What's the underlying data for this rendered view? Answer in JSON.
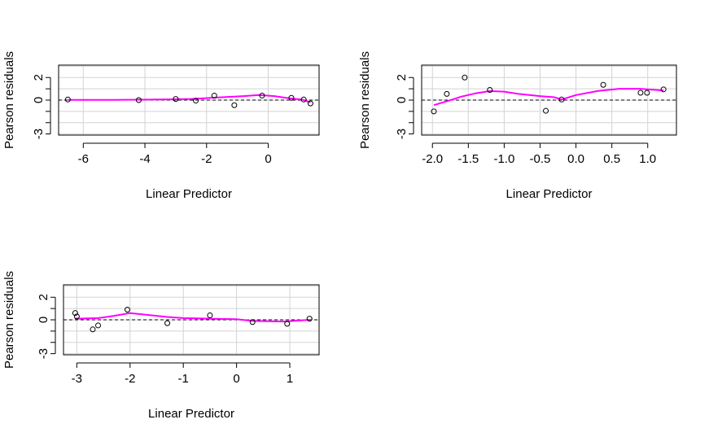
{
  "chart_data": [
    {
      "type": "scatter",
      "xlabel": "Linear Predictor",
      "ylabel": "Pearson residuals",
      "xlim": [
        -6.8,
        1.65
      ],
      "ylim": [
        -3.1,
        3.1
      ],
      "xticks": [
        -6,
        -4,
        -2,
        0
      ],
      "yticks": [
        -3,
        0,
        2
      ],
      "grid": true,
      "reference_line_y": 0,
      "points": [
        {
          "x": -6.5,
          "y": 0.05
        },
        {
          "x": -4.2,
          "y": 0.0
        },
        {
          "x": -3.0,
          "y": 0.1
        },
        {
          "x": -2.35,
          "y": -0.05
        },
        {
          "x": -1.75,
          "y": 0.4
        },
        {
          "x": -1.1,
          "y": -0.45
        },
        {
          "x": -0.2,
          "y": 0.4
        },
        {
          "x": 0.75,
          "y": 0.2
        },
        {
          "x": 1.15,
          "y": 0.05
        },
        {
          "x": 1.37,
          "y": -0.3
        }
      ],
      "smooth": [
        {
          "x": -6.5,
          "y": 0.02
        },
        {
          "x": -5.0,
          "y": 0.02
        },
        {
          "x": -3.5,
          "y": 0.05
        },
        {
          "x": -2.5,
          "y": 0.1
        },
        {
          "x": -1.5,
          "y": 0.25
        },
        {
          "x": -0.8,
          "y": 0.35
        },
        {
          "x": -0.3,
          "y": 0.45
        },
        {
          "x": 0.2,
          "y": 0.35
        },
        {
          "x": 0.7,
          "y": 0.15
        },
        {
          "x": 1.1,
          "y": 0.05
        },
        {
          "x": 1.37,
          "y": -0.2
        }
      ],
      "smooth_color": "#ff00ff"
    },
    {
      "type": "scatter",
      "xlabel": "Linear Predictor",
      "ylabel": "Pearson residuals",
      "xlim": [
        -2.15,
        1.4
      ],
      "ylim": [
        -3.1,
        3.1
      ],
      "xticks": [
        -2.0,
        -1.5,
        -1.0,
        -0.5,
        0.0,
        0.5,
        1.0
      ],
      "xtick_labels": [
        "-2.0",
        "-1.5",
        "-1.0",
        "-0.5",
        "0.0",
        "0.5",
        "1.0"
      ],
      "yticks": [
        -3,
        0,
        2
      ],
      "grid": true,
      "reference_line_y": 0,
      "points": [
        {
          "x": -1.98,
          "y": -1.0
        },
        {
          "x": -1.8,
          "y": 0.55
        },
        {
          "x": -1.55,
          "y": 2.0
        },
        {
          "x": -1.2,
          "y": 0.9
        },
        {
          "x": -0.42,
          "y": -0.95
        },
        {
          "x": -0.2,
          "y": 0.05
        },
        {
          "x": 0.38,
          "y": 1.35
        },
        {
          "x": 0.9,
          "y": 0.65
        },
        {
          "x": 0.99,
          "y": 0.65
        },
        {
          "x": 1.22,
          "y": 0.95
        }
      ],
      "smooth": [
        {
          "x": -1.98,
          "y": -0.45
        },
        {
          "x": -1.8,
          "y": -0.1
        },
        {
          "x": -1.6,
          "y": 0.3
        },
        {
          "x": -1.4,
          "y": 0.6
        },
        {
          "x": -1.2,
          "y": 0.8
        },
        {
          "x": -1.0,
          "y": 0.75
        },
        {
          "x": -0.8,
          "y": 0.55
        },
        {
          "x": -0.5,
          "y": 0.35
        },
        {
          "x": -0.3,
          "y": 0.25
        },
        {
          "x": -0.2,
          "y": 0.05
        },
        {
          "x": 0.0,
          "y": 0.45
        },
        {
          "x": 0.3,
          "y": 0.8
        },
        {
          "x": 0.6,
          "y": 1.0
        },
        {
          "x": 0.9,
          "y": 1.0
        },
        {
          "x": 1.22,
          "y": 0.85
        }
      ],
      "smooth_color": "#ff00ff"
    },
    {
      "type": "scatter",
      "xlabel": "Linear Predictor",
      "ylabel": "Pearson residuals",
      "xlim": [
        -3.25,
        1.55
      ],
      "ylim": [
        -3.1,
        3.1
      ],
      "xticks": [
        -3,
        -2,
        -1,
        0,
        1
      ],
      "yticks": [
        -3,
        0,
        2
      ],
      "grid": true,
      "reference_line_y": 0,
      "points": [
        {
          "x": -3.03,
          "y": 0.6
        },
        {
          "x": -3.0,
          "y": 0.3
        },
        {
          "x": -2.7,
          "y": -0.85
        },
        {
          "x": -2.6,
          "y": -0.5
        },
        {
          "x": -2.05,
          "y": 0.9
        },
        {
          "x": -1.3,
          "y": -0.3
        },
        {
          "x": -0.5,
          "y": 0.4
        },
        {
          "x": 0.3,
          "y": -0.2
        },
        {
          "x": 0.95,
          "y": -0.35
        },
        {
          "x": 1.37,
          "y": 0.1
        }
      ],
      "smooth": [
        {
          "x": -3.03,
          "y": 0.1
        },
        {
          "x": -2.6,
          "y": 0.15
        },
        {
          "x": -2.3,
          "y": 0.35
        },
        {
          "x": -2.0,
          "y": 0.6
        },
        {
          "x": -1.7,
          "y": 0.45
        },
        {
          "x": -1.3,
          "y": 0.25
        },
        {
          "x": -1.0,
          "y": 0.15
        },
        {
          "x": -0.5,
          "y": 0.1
        },
        {
          "x": 0.0,
          "y": 0.05
        },
        {
          "x": 0.3,
          "y": -0.1
        },
        {
          "x": 0.9,
          "y": -0.15
        },
        {
          "x": 1.37,
          "y": 0.0
        }
      ],
      "smooth_color": "#ff00ff"
    }
  ]
}
